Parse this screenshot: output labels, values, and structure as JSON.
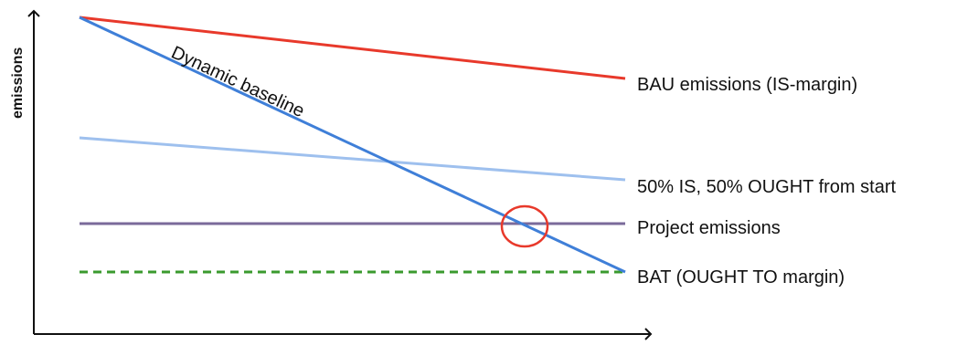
{
  "axes": {
    "ylabel": "emissions"
  },
  "lines": {
    "bau": {
      "label": "BAU emissions (IS-margin)",
      "color": "#e8392b"
    },
    "dynamic": {
      "label": "Dynamic baseline",
      "color": "#3f7fd8"
    },
    "mixed": {
      "label": "50% IS, 50% OUGHT  from start",
      "color": "#9ec0ee"
    },
    "project": {
      "label": "Project emissions",
      "color": "#7a6a9a"
    },
    "bat": {
      "label": "BAT (OUGHT TO margin)",
      "color": "#3a9a2e"
    }
  },
  "marker": {
    "name": "intersection circle",
    "color": "#e8392b"
  },
  "axis_color": "#111111"
}
